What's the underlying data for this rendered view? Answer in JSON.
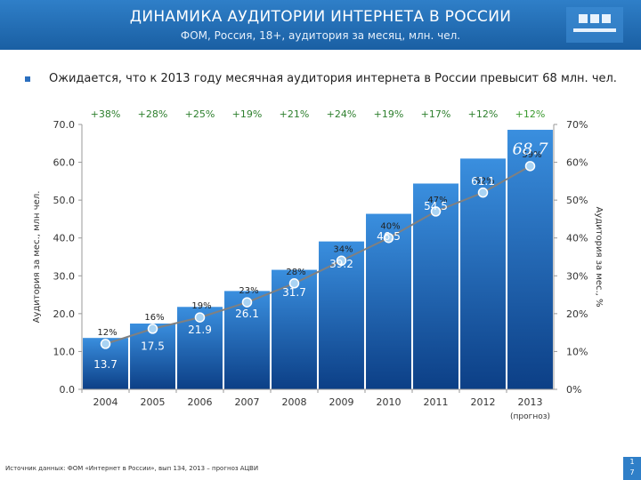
{
  "header": {
    "title": "ДИНАМИКА АУДИТОРИИ ИНТЕРНЕТА В РОССИИ",
    "subtitle": "ФОМ, Россия, 18+, аудитория за месяц, млн. чел."
  },
  "bullet": "Ожидается, что к 2013 году месячная аудитория интернета в России превысит 68 млн. чел.",
  "source": "Источник данных: ФОМ «Интернет в России», вып 134, 2013 – прогноз АЦВИ",
  "corner": {
    "line1": "1",
    "line2": "7"
  },
  "colors": {
    "header": "#1f6bb5",
    "bar_top": "#3a8fdf",
    "bar_bottom": "#0c3f86",
    "line": "#7f7f7f",
    "marker": "#9ecbef"
  },
  "chart_data": {
    "type": "bar",
    "categories": [
      "2004",
      "2005",
      "2006",
      "2007",
      "2008",
      "2009",
      "2010",
      "2011",
      "2012",
      "2013"
    ],
    "forecast_category_note": "(прогноз)",
    "ylabel": "Аудитория за мес., млн чел.",
    "y2label": "Аудитория за мес., %",
    "ylim": [
      0,
      70
    ],
    "yticks": [
      "0.0",
      "10.0",
      "20.0",
      "30.0",
      "40.0",
      "50.0",
      "60.0",
      "70.0"
    ],
    "y2lim": [
      0,
      70
    ],
    "y2ticks": [
      "0%",
      "10%",
      "20%",
      "30%",
      "40%",
      "50%",
      "60%",
      "70%"
    ],
    "series": [
      {
        "values": [
          13.7,
          17.5,
          21.9,
          26.1,
          31.7,
          39.2,
          46.5,
          54.5,
          61.1,
          68.7
        ],
        "labels": [
          "13.7",
          "17.5",
          "21.9",
          "26.1",
          "31.7",
          "39.2",
          "46.5",
          "54.5",
          "61.1",
          "68.7"
        ]
      },
      {
        "type": "line",
        "values": [
          12,
          16,
          19,
          23,
          28,
          34,
          40,
          47,
          52,
          59
        ],
        "labels": [
          "12%",
          "16%",
          "19%",
          "23%",
          "28%",
          "34%",
          "40%",
          "47%",
          "52%",
          "59%"
        ]
      }
    ],
    "growth_labels": [
      "+38%",
      "+28%",
      "+25%",
      "+19%",
      "+21%",
      "+24%",
      "+19%",
      "+17%",
      "+12%",
      "+12%"
    ],
    "grid": false,
    "legend": "none"
  }
}
